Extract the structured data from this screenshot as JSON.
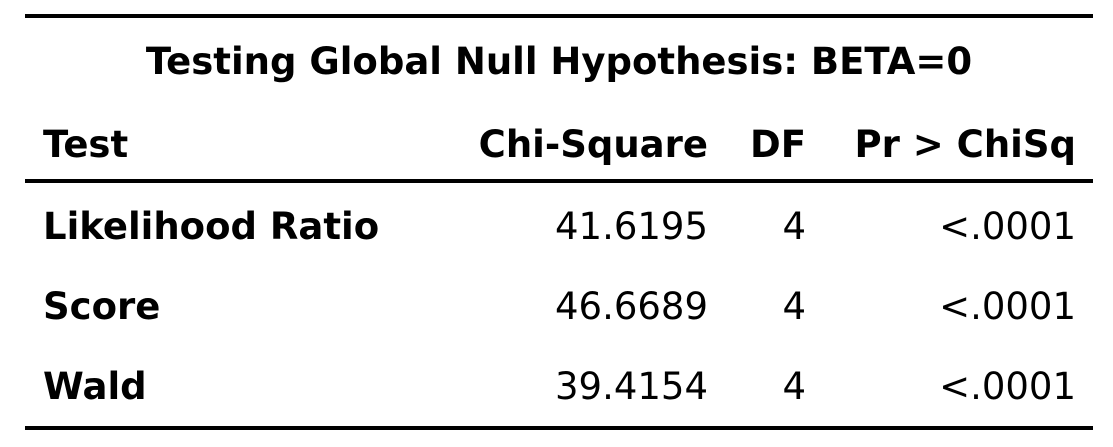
{
  "table": {
    "title": "Testing Global Null Hypothesis: BETA=0",
    "headers": {
      "test": "Test",
      "chi_square": "Chi-Square",
      "df": "DF",
      "p_value": "Pr > ChiSq"
    },
    "rows": [
      {
        "test": "Likelihood Ratio",
        "chi_square": "41.6195",
        "df": "4",
        "p_value": "<.0001"
      },
      {
        "test": "Score",
        "chi_square": "46.6689",
        "df": "4",
        "p_value": "<.0001"
      },
      {
        "test": "Wald",
        "chi_square": "39.4154",
        "df": "4",
        "p_value": "<.0001"
      }
    ]
  }
}
